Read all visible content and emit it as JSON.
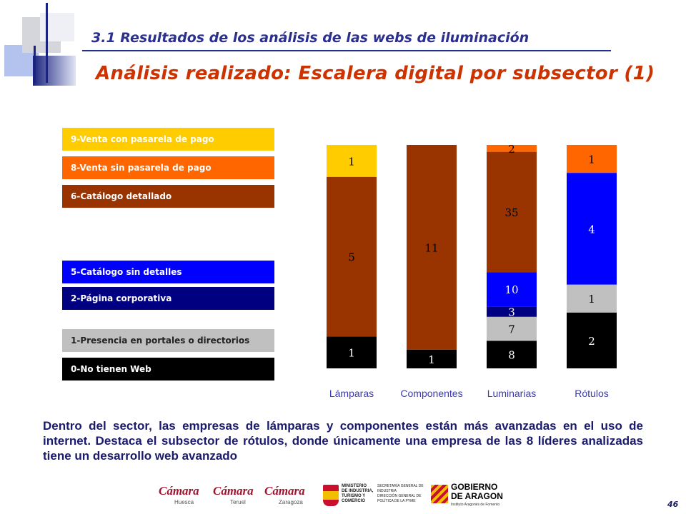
{
  "header": {
    "subtitle": "3.1 Resultados de  los análisis de las webs de iluminación",
    "title": "Análisis realizado: Escalera digital por subsector (1)"
  },
  "legend": [
    {
      "label": "9-Venta con pasarela de pago",
      "color": "#ffcc00",
      "text_color": "#ffffff"
    },
    {
      "label": "8-Venta sin pasarela de pago",
      "color": "#ff6600",
      "text_color": "#ffffff"
    },
    {
      "label": "6-Catálogo detallado",
      "color": "#993300",
      "text_color": "#ffffff"
    },
    {
      "label": "5-Catálogo sin detalles",
      "color": "#0000ff",
      "text_color": "#ffffff"
    },
    {
      "label": "2-Página corporativa",
      "color": "#000080",
      "text_color": "#ffffff"
    },
    {
      "label": "1-Presencia en portales o directorios",
      "color": "#c0c0c0",
      "text_color": "#222222"
    },
    {
      "label": "0-No tienen Web",
      "color": "#000000",
      "text_color": "#ffffff"
    }
  ],
  "chart_data": {
    "type": "bar",
    "stacked": "100%",
    "categories": [
      "Lámparas",
      "Componentes",
      "Luminarias",
      "Rótulos"
    ],
    "category_color": "#3a3ab8",
    "series": [
      {
        "name": "0-No tienen Web",
        "color": "#000000",
        "label_color": "#ffffff",
        "values": [
          1,
          1,
          8,
          2
        ]
      },
      {
        "name": "1-Presencia en portales o directorios",
        "color": "#c0c0c0",
        "label_color": "#000000",
        "values": [
          0,
          0,
          7,
          1
        ]
      },
      {
        "name": "2-Página corporativa",
        "color": "#000080",
        "label_color": "#ffffff",
        "values": [
          0,
          0,
          3,
          0
        ]
      },
      {
        "name": "5-Catálogo sin detalles",
        "color": "#0000ff",
        "label_color": "#ffffff",
        "values": [
          0,
          0,
          10,
          4
        ]
      },
      {
        "name": "6-Catálogo detallado",
        "color": "#993300",
        "label_color": "#000000",
        "values": [
          5,
          11,
          35,
          0
        ]
      },
      {
        "name": "8-Venta sin pasarela de pago",
        "color": "#ff6600",
        "label_color": "#000000",
        "values": [
          0,
          0,
          2,
          1
        ]
      },
      {
        "name": "9-Venta con pasarela de pago",
        "color": "#ffcc00",
        "label_color": "#000000",
        "values": [
          1,
          0,
          0,
          0
        ]
      }
    ],
    "xlabel": "",
    "ylabel": "",
    "grid": false,
    "legend": "left"
  },
  "body_text": "Dentro del sector, las empresas de lámparas y componentes están más avanzadas en el uso de internet. Destaca el subsector de rótulos, donde únicamente una empresa de las 8 líderes analizadas tiene un desarrollo web avanzado",
  "footer": {
    "logos": [
      {
        "brand": "Cámara",
        "sub": "Huesca"
      },
      {
        "brand": "Cámara",
        "sub": "Teruel"
      },
      {
        "brand": "Cámara",
        "sub": "Zaragoza"
      }
    ],
    "ministry_lines": [
      "MINISTERIO",
      "DE INDUSTRIA,",
      "TURISMO Y",
      "COMERCIO"
    ],
    "secretaria_lines": [
      "SECRETARÍA GENERAL DE",
      "INDUSTRIA",
      "DIRECCIÓN GENERAL DE",
      "POLÍTICA DE LA PYME"
    ],
    "gobierno_lines": [
      "GOBIERNO",
      "DE ARAGON"
    ],
    "gobierno_sub": "Instituto Aragonés de Fomento",
    "page_number": "46"
  }
}
